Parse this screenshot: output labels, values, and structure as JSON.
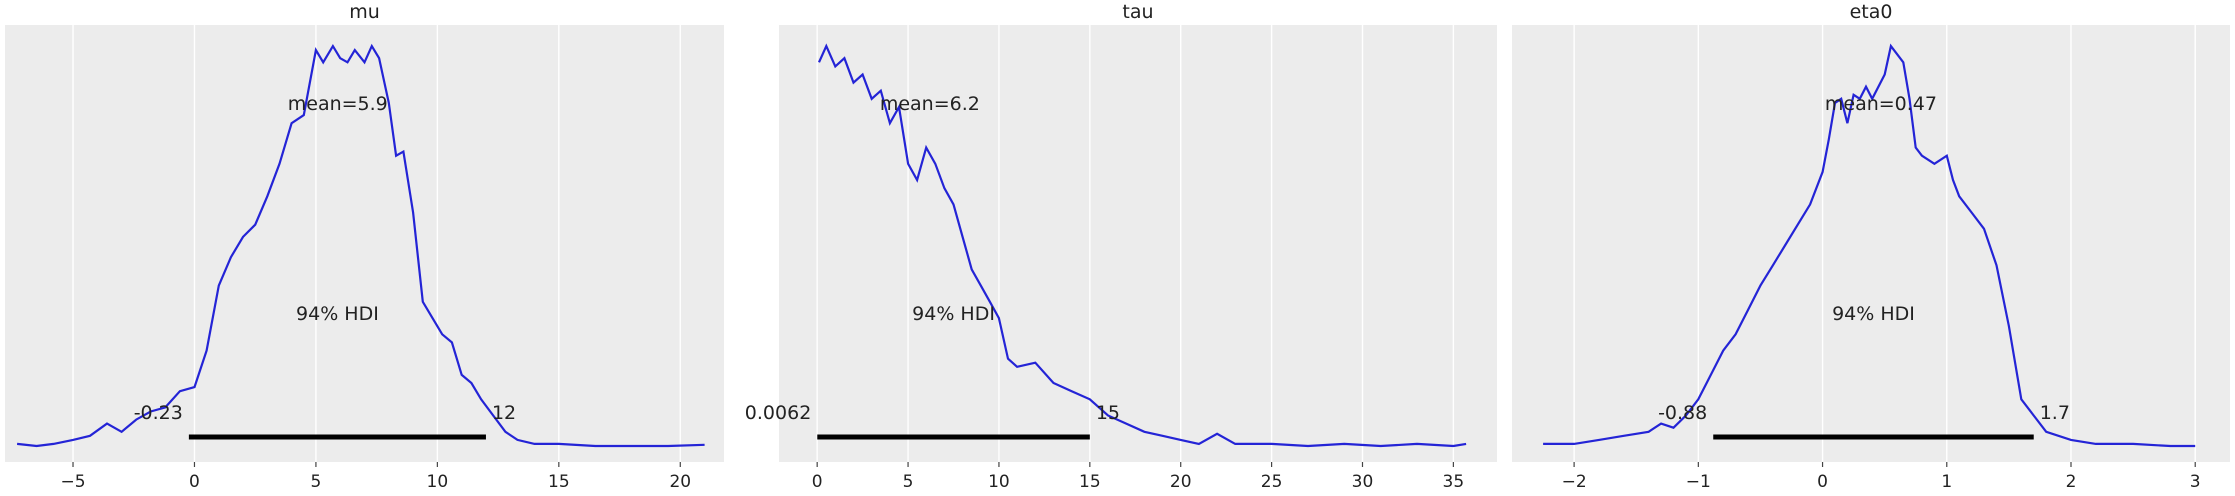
{
  "chart_data": [
    {
      "type": "line",
      "title": "mu",
      "xlabel": "",
      "ylabel": "",
      "xlim": [
        -7.8,
        21.8
      ],
      "ylim": [
        0,
        1
      ],
      "x_ticks": [
        -5,
        0,
        5,
        10,
        15,
        20
      ],
      "x_tick_labels": [
        "−5",
        "0",
        "5",
        "10",
        "15",
        "20"
      ],
      "grid": true,
      "mean_label": "mean=5.9",
      "mean_label_pos": [
        5.9,
        0.86
      ],
      "hdi_label": "94% HDI",
      "hdi_low": -0.23,
      "hdi_high": 12,
      "hdi_low_label": "-0.23",
      "hdi_high_label": "12",
      "series": [
        {
          "x": [
            -7.3,
            -6.5,
            -5.8,
            -5.0,
            -4.3,
            -3.6,
            -3.0,
            -2.4,
            -1.8,
            -1.2,
            -0.6,
            0.0,
            0.5,
            1.0,
            1.5,
            2.0,
            2.5,
            3.0,
            3.5,
            4.0,
            4.5,
            5.0,
            5.3,
            5.7,
            6.0,
            6.3,
            6.6,
            7.0,
            7.3,
            7.6,
            8.0,
            8.3,
            8.6,
            9.0,
            9.4,
            9.8,
            10.2,
            10.6,
            11.0,
            11.4,
            11.8,
            12.3,
            12.8,
            13.3,
            14.0,
            15.0,
            16.5,
            18.0,
            19.5,
            21.0
          ],
          "y": [
            0.01,
            0.005,
            0.01,
            0.02,
            0.03,
            0.06,
            0.04,
            0.07,
            0.09,
            0.1,
            0.14,
            0.15,
            0.24,
            0.4,
            0.47,
            0.52,
            0.55,
            0.62,
            0.7,
            0.8,
            0.82,
            0.98,
            0.95,
            0.99,
            0.96,
            0.95,
            0.98,
            0.95,
            0.99,
            0.96,
            0.85,
            0.72,
            0.73,
            0.58,
            0.36,
            0.32,
            0.28,
            0.26,
            0.18,
            0.16,
            0.12,
            0.08,
            0.04,
            0.02,
            0.01,
            0.01,
            0.005,
            0.005,
            0.005,
            0.008
          ]
        }
      ]
    },
    {
      "type": "line",
      "title": "tau",
      "xlabel": "",
      "ylabel": "",
      "xlim": [
        -2.1,
        37.4
      ],
      "ylim": [
        0,
        1
      ],
      "x_ticks": [
        0,
        5,
        10,
        15,
        20,
        25,
        30,
        35
      ],
      "x_tick_labels": [
        "0",
        "5",
        "10",
        "15",
        "20",
        "25",
        "30",
        "35"
      ],
      "grid": true,
      "mean_label": "mean=6.2",
      "mean_label_pos": [
        6.2,
        0.86
      ],
      "hdi_label": "94% HDI",
      "hdi_low": 0.0062,
      "hdi_high": 15,
      "hdi_low_label": "0.0062",
      "hdi_high_label": "15",
      "series": [
        {
          "x": [
            0.1,
            0.5,
            1.0,
            1.5,
            2.0,
            2.5,
            3.0,
            3.5,
            4.0,
            4.5,
            5.0,
            5.5,
            6.0,
            6.5,
            7.0,
            7.5,
            8.0,
            8.5,
            9.0,
            9.5,
            10.0,
            10.5,
            11.0,
            12.0,
            13.0,
            14.0,
            15.0,
            16.0,
            17.0,
            18.0,
            19.0,
            20.0,
            21.0,
            22.0,
            23.0,
            25.0,
            27.0,
            29.0,
            31.0,
            33.0,
            35.0,
            35.7
          ],
          "y": [
            0.95,
            0.99,
            0.94,
            0.96,
            0.9,
            0.92,
            0.86,
            0.88,
            0.8,
            0.84,
            0.7,
            0.66,
            0.74,
            0.7,
            0.64,
            0.6,
            0.52,
            0.44,
            0.4,
            0.36,
            0.32,
            0.22,
            0.2,
            0.21,
            0.16,
            0.14,
            0.12,
            0.08,
            0.06,
            0.04,
            0.03,
            0.02,
            0.01,
            0.035,
            0.01,
            0.01,
            0.005,
            0.01,
            0.005,
            0.01,
            0.005,
            0.01
          ]
        }
      ]
    },
    {
      "type": "line",
      "title": "eta0",
      "xlabel": "",
      "ylabel": "",
      "xlim": [
        -2.5,
        3.28
      ],
      "ylim": [
        0,
        1
      ],
      "x_ticks": [
        -2,
        -1,
        0,
        1,
        2,
        3
      ],
      "x_tick_labels": [
        "−2",
        "−1",
        "0",
        "1",
        "2",
        "3"
      ],
      "grid": true,
      "mean_label": "mean=0.47",
      "mean_label_pos": [
        0.47,
        0.86
      ],
      "hdi_label": "94% HDI",
      "hdi_low": -0.88,
      "hdi_high": 1.7,
      "hdi_low_label": "-0.88",
      "hdi_high_label": "1.7",
      "series": [
        {
          "x": [
            -2.25,
            -2.0,
            -1.8,
            -1.6,
            -1.4,
            -1.3,
            -1.2,
            -1.1,
            -1.0,
            -0.9,
            -0.8,
            -0.7,
            -0.6,
            -0.5,
            -0.4,
            -0.3,
            -0.2,
            -0.1,
            0.0,
            0.05,
            0.1,
            0.15,
            0.2,
            0.25,
            0.3,
            0.35,
            0.4,
            0.5,
            0.55,
            0.6,
            0.65,
            0.7,
            0.75,
            0.8,
            0.9,
            1.0,
            1.05,
            1.1,
            1.2,
            1.3,
            1.4,
            1.5,
            1.6,
            1.7,
            1.8,
            2.0,
            2.2,
            2.5,
            2.8,
            3.0
          ],
          "y": [
            0.01,
            0.01,
            0.02,
            0.03,
            0.04,
            0.06,
            0.05,
            0.08,
            0.12,
            0.18,
            0.24,
            0.28,
            0.34,
            0.4,
            0.45,
            0.5,
            0.55,
            0.6,
            0.68,
            0.76,
            0.85,
            0.86,
            0.8,
            0.87,
            0.86,
            0.89,
            0.86,
            0.92,
            0.99,
            0.97,
            0.95,
            0.86,
            0.74,
            0.72,
            0.7,
            0.72,
            0.66,
            0.62,
            0.58,
            0.54,
            0.45,
            0.3,
            0.12,
            0.08,
            0.04,
            0.02,
            0.01,
            0.01,
            0.005,
            0.005
          ]
        }
      ]
    }
  ]
}
